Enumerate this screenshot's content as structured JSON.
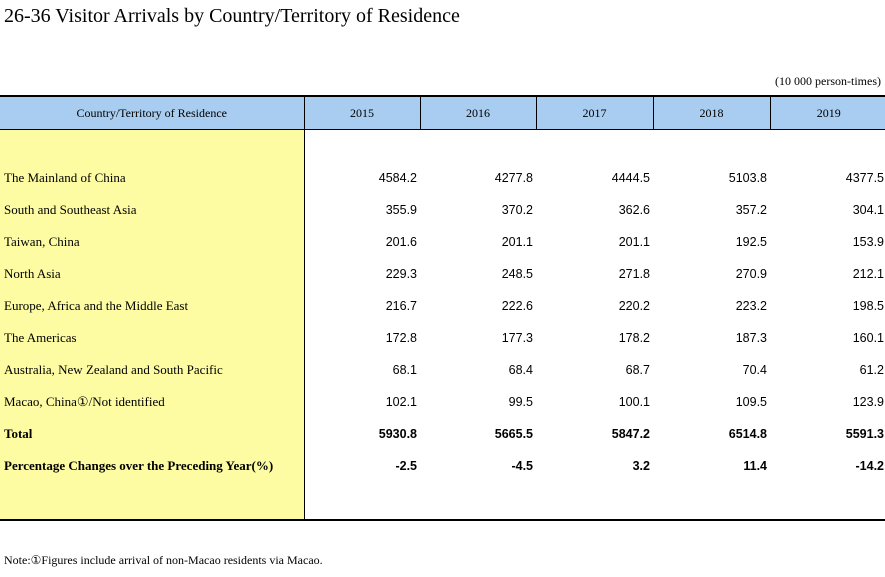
{
  "title": "26-36  Visitor Arrivals by Country/Territory of Residence",
  "unit": "(10 000 person-times)",
  "columns": [
    "Country/Territory of Residence",
    "2015",
    "2016",
    "2017",
    "2018",
    "2019"
  ],
  "rows": [
    {
      "label": "The Mainland of China",
      "values": [
        "4584.2",
        "4277.8",
        "4444.5",
        "5103.8",
        "4377.5"
      ]
    },
    {
      "label": "South and Southeast Asia",
      "values": [
        "355.9",
        "370.2",
        "362.6",
        "357.2",
        "304.1"
      ]
    },
    {
      "label": "Taiwan, China",
      "values": [
        "201.6",
        "201.1",
        "201.1",
        "192.5",
        "153.9"
      ]
    },
    {
      "label": "North Asia",
      "values": [
        "229.3",
        "248.5",
        "271.8",
        "270.9",
        "212.1"
      ]
    },
    {
      "label": "Europe, Africa and the Middle East",
      "values": [
        "216.7",
        "222.6",
        "220.2",
        "223.2",
        "198.5"
      ]
    },
    {
      "label": "The Americas",
      "values": [
        "172.8",
        "177.3",
        "178.2",
        "187.3",
        "160.1"
      ]
    },
    {
      "label": "Australia, New Zealand and South Pacific",
      "values": [
        "68.1",
        "68.4",
        "68.7",
        "70.4",
        "61.2"
      ]
    },
    {
      "label": "Macao, China①/Not identified",
      "values": [
        "102.1",
        "99.5",
        "100.1",
        "109.5",
        "123.9"
      ]
    },
    {
      "label": "Total",
      "values": [
        "5930.8",
        "5665.5",
        "5847.2",
        "6514.8",
        "5591.3"
      ],
      "bold": true
    },
    {
      "label": "Percentage Changes over the Preceding Year(%)",
      "values": [
        "-2.5",
        "-4.5",
        "3.2",
        "11.4",
        "-14.2"
      ],
      "bold": true
    }
  ],
  "note": "Note:①Figures include arrival of non-Macao residents via Macao.",
  "colors": {
    "header_bg": "#a8cdf0",
    "label_bg": "#fdfca2"
  }
}
